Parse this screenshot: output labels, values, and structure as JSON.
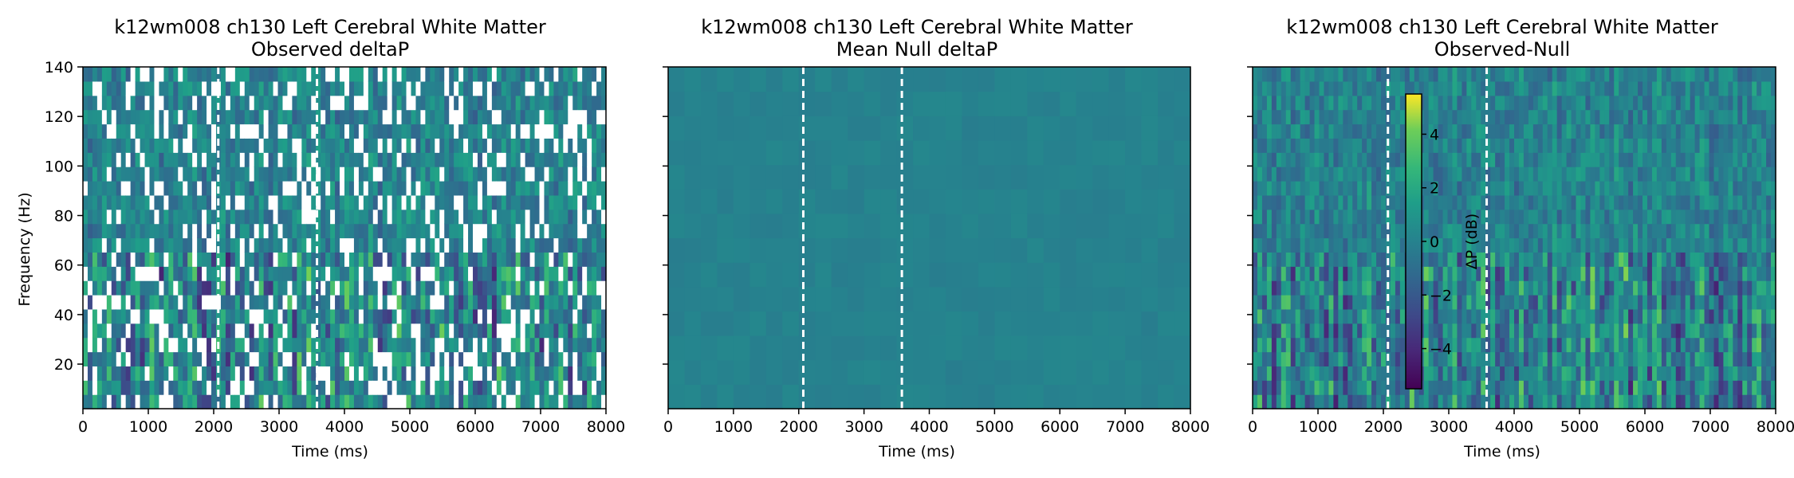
{
  "colors": {
    "viridis_low": "#440154",
    "viridis_mid": "#21918c",
    "viridis_high": "#fde725"
  },
  "colorbar": {
    "label": "ΔP (dB)",
    "range": [
      -5.5,
      5.5
    ],
    "ticks": [
      -4,
      -2,
      0,
      2,
      4
    ],
    "tick_labels": [
      "−4",
      "−2",
      "0",
      "2",
      "4"
    ],
    "colormap": "viridis"
  },
  "chart_data": [
    {
      "type": "heatmap",
      "title": "k12wm008 ch130 Left Cerebral White Matter",
      "subtitle": "Observed deltaP",
      "xlabel": "Time (ms)",
      "ylabel": "Frequency (Hz)",
      "xlim": [
        0,
        8000
      ],
      "ylim": [
        2,
        140
      ],
      "x_ticks": [
        0,
        1000,
        2000,
        3000,
        4000,
        5000,
        6000,
        7000,
        8000
      ],
      "y_ticks": [
        20,
        40,
        60,
        80,
        100,
        120,
        140
      ],
      "show_y_tick_labels": true,
      "vertical_lines_ms": [
        2070,
        3580
      ],
      "colormap": "viridis",
      "value_range_db": [
        -5.5,
        5.5
      ],
      "pattern": "noisy observed spectral power change with many masked (white) gaps; stronger variation at lower frequencies"
    },
    {
      "type": "heatmap",
      "title": "k12wm008 ch130 Left Cerebral White Matter",
      "subtitle": "Mean Null deltaP",
      "xlabel": "Time (ms)",
      "ylabel": "",
      "xlim": [
        0,
        8000
      ],
      "ylim": [
        2,
        140
      ],
      "x_ticks": [
        0,
        1000,
        2000,
        3000,
        4000,
        5000,
        6000,
        7000,
        8000
      ],
      "y_ticks": [
        20,
        40,
        60,
        80,
        100,
        120,
        140
      ],
      "show_y_tick_labels": false,
      "vertical_lines_ms": [
        2070,
        3580
      ],
      "colormap": "viridis",
      "value_range_db": [
        -5.5,
        5.5
      ],
      "pattern": "nearly uniform values close to 0 dB"
    },
    {
      "type": "heatmap",
      "title": "k12wm008 ch130 Left Cerebral White Matter",
      "subtitle": "Observed-Null",
      "xlabel": "Time (ms)",
      "ylabel": "",
      "xlim": [
        0,
        8000
      ],
      "ylim": [
        2,
        140
      ],
      "x_ticks": [
        0,
        1000,
        2000,
        3000,
        4000,
        5000,
        6000,
        7000,
        8000
      ],
      "y_ticks": [
        20,
        40,
        60,
        80,
        100,
        120,
        140
      ],
      "show_y_tick_labels": false,
      "vertical_lines_ms": [
        2070,
        3580
      ],
      "colormap": "viridis",
      "value_range_db": [
        -5.5,
        5.5
      ],
      "pattern": "smooth spectrotemporal difference map, vertically elongated blobs at low frequencies, finer texture at high frequencies"
    }
  ]
}
